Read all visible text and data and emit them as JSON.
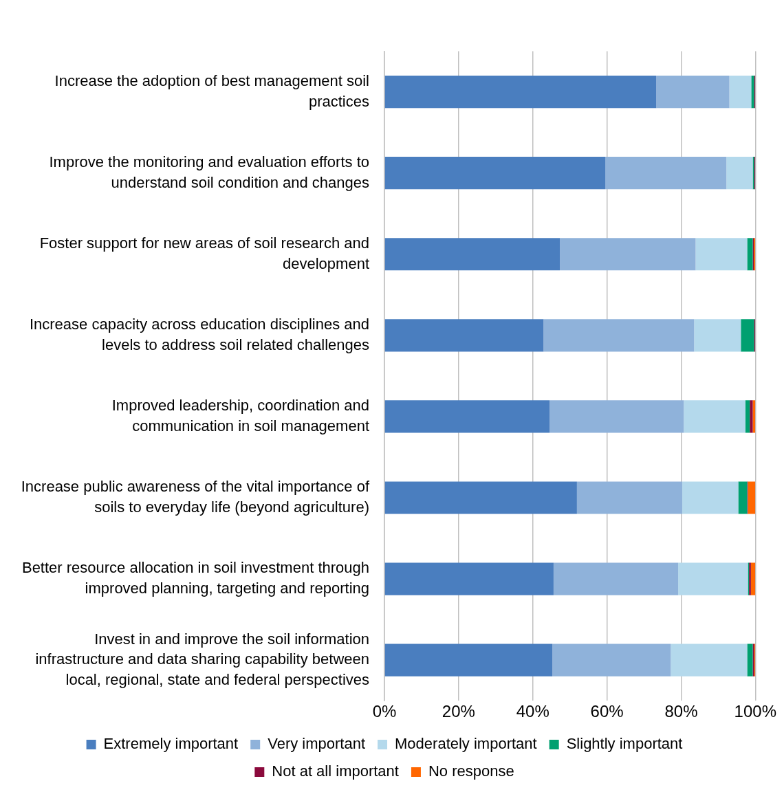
{
  "chart_data": {
    "type": "bar",
    "orientation": "horizontal",
    "stacked": true,
    "categories": [
      "Increase the adoption of best management soil practices",
      "Improve the monitoring and evaluation efforts to understand soil condition and changes",
      "Foster support for new areas of soil research and development",
      "Increase capacity across education disciplines and levels to address soil related challenges",
      "Improved leadership, coordination and communication in soil management",
      "Increase public awareness of the vital importance of soils to everyday life (beyond agriculture)",
      "Better resource allocation in soil investment through improved planning, targeting and reporting",
      "Invest in and improve the soil information infrastructure and data sharing capability between local, regional, state and federal perspectives"
    ],
    "series": [
      {
        "name": "Extremely important",
        "color": "#4a7ebf",
        "values": [
          73.3,
          59.6,
          47.3,
          42.9,
          44.5,
          51.9,
          45.6,
          45.3
        ]
      },
      {
        "name": "Very important",
        "color": "#8fb2da",
        "values": [
          19.7,
          32.6,
          36.6,
          40.6,
          36.2,
          28.4,
          33.6,
          31.9
        ]
      },
      {
        "name": "Moderately important",
        "color": "#b4d9ec",
        "values": [
          5.9,
          7.1,
          13.9,
          12.6,
          16.6,
          15.1,
          18.8,
          20.6
        ]
      },
      {
        "name": "Slightly important",
        "color": "#00a070",
        "values": [
          0.8,
          0.4,
          1.5,
          3.6,
          1.2,
          2.4,
          0.3,
          1.5
        ]
      },
      {
        "name": "Not at all important",
        "color": "#8b0a3c",
        "values": [
          0.3,
          0.3,
          0.3,
          0.3,
          0.8,
          0.2,
          0.5,
          0.4
        ]
      },
      {
        "name": "No response",
        "color": "#ff6600",
        "values": [
          0,
          0,
          0.4,
          0,
          0.7,
          2.0,
          1.2,
          0.3
        ]
      }
    ],
    "xlim": [
      0,
      100
    ],
    "xticks": [
      {
        "value": 0,
        "label": "0%"
      },
      {
        "value": 20,
        "label": "20%"
      },
      {
        "value": 40,
        "label": "40%"
      },
      {
        "value": 60,
        "label": "60%"
      },
      {
        "value": 80,
        "label": "80%"
      },
      {
        "value": 100,
        "label": "100%"
      }
    ],
    "grid": "x",
    "legend": "bottom"
  }
}
